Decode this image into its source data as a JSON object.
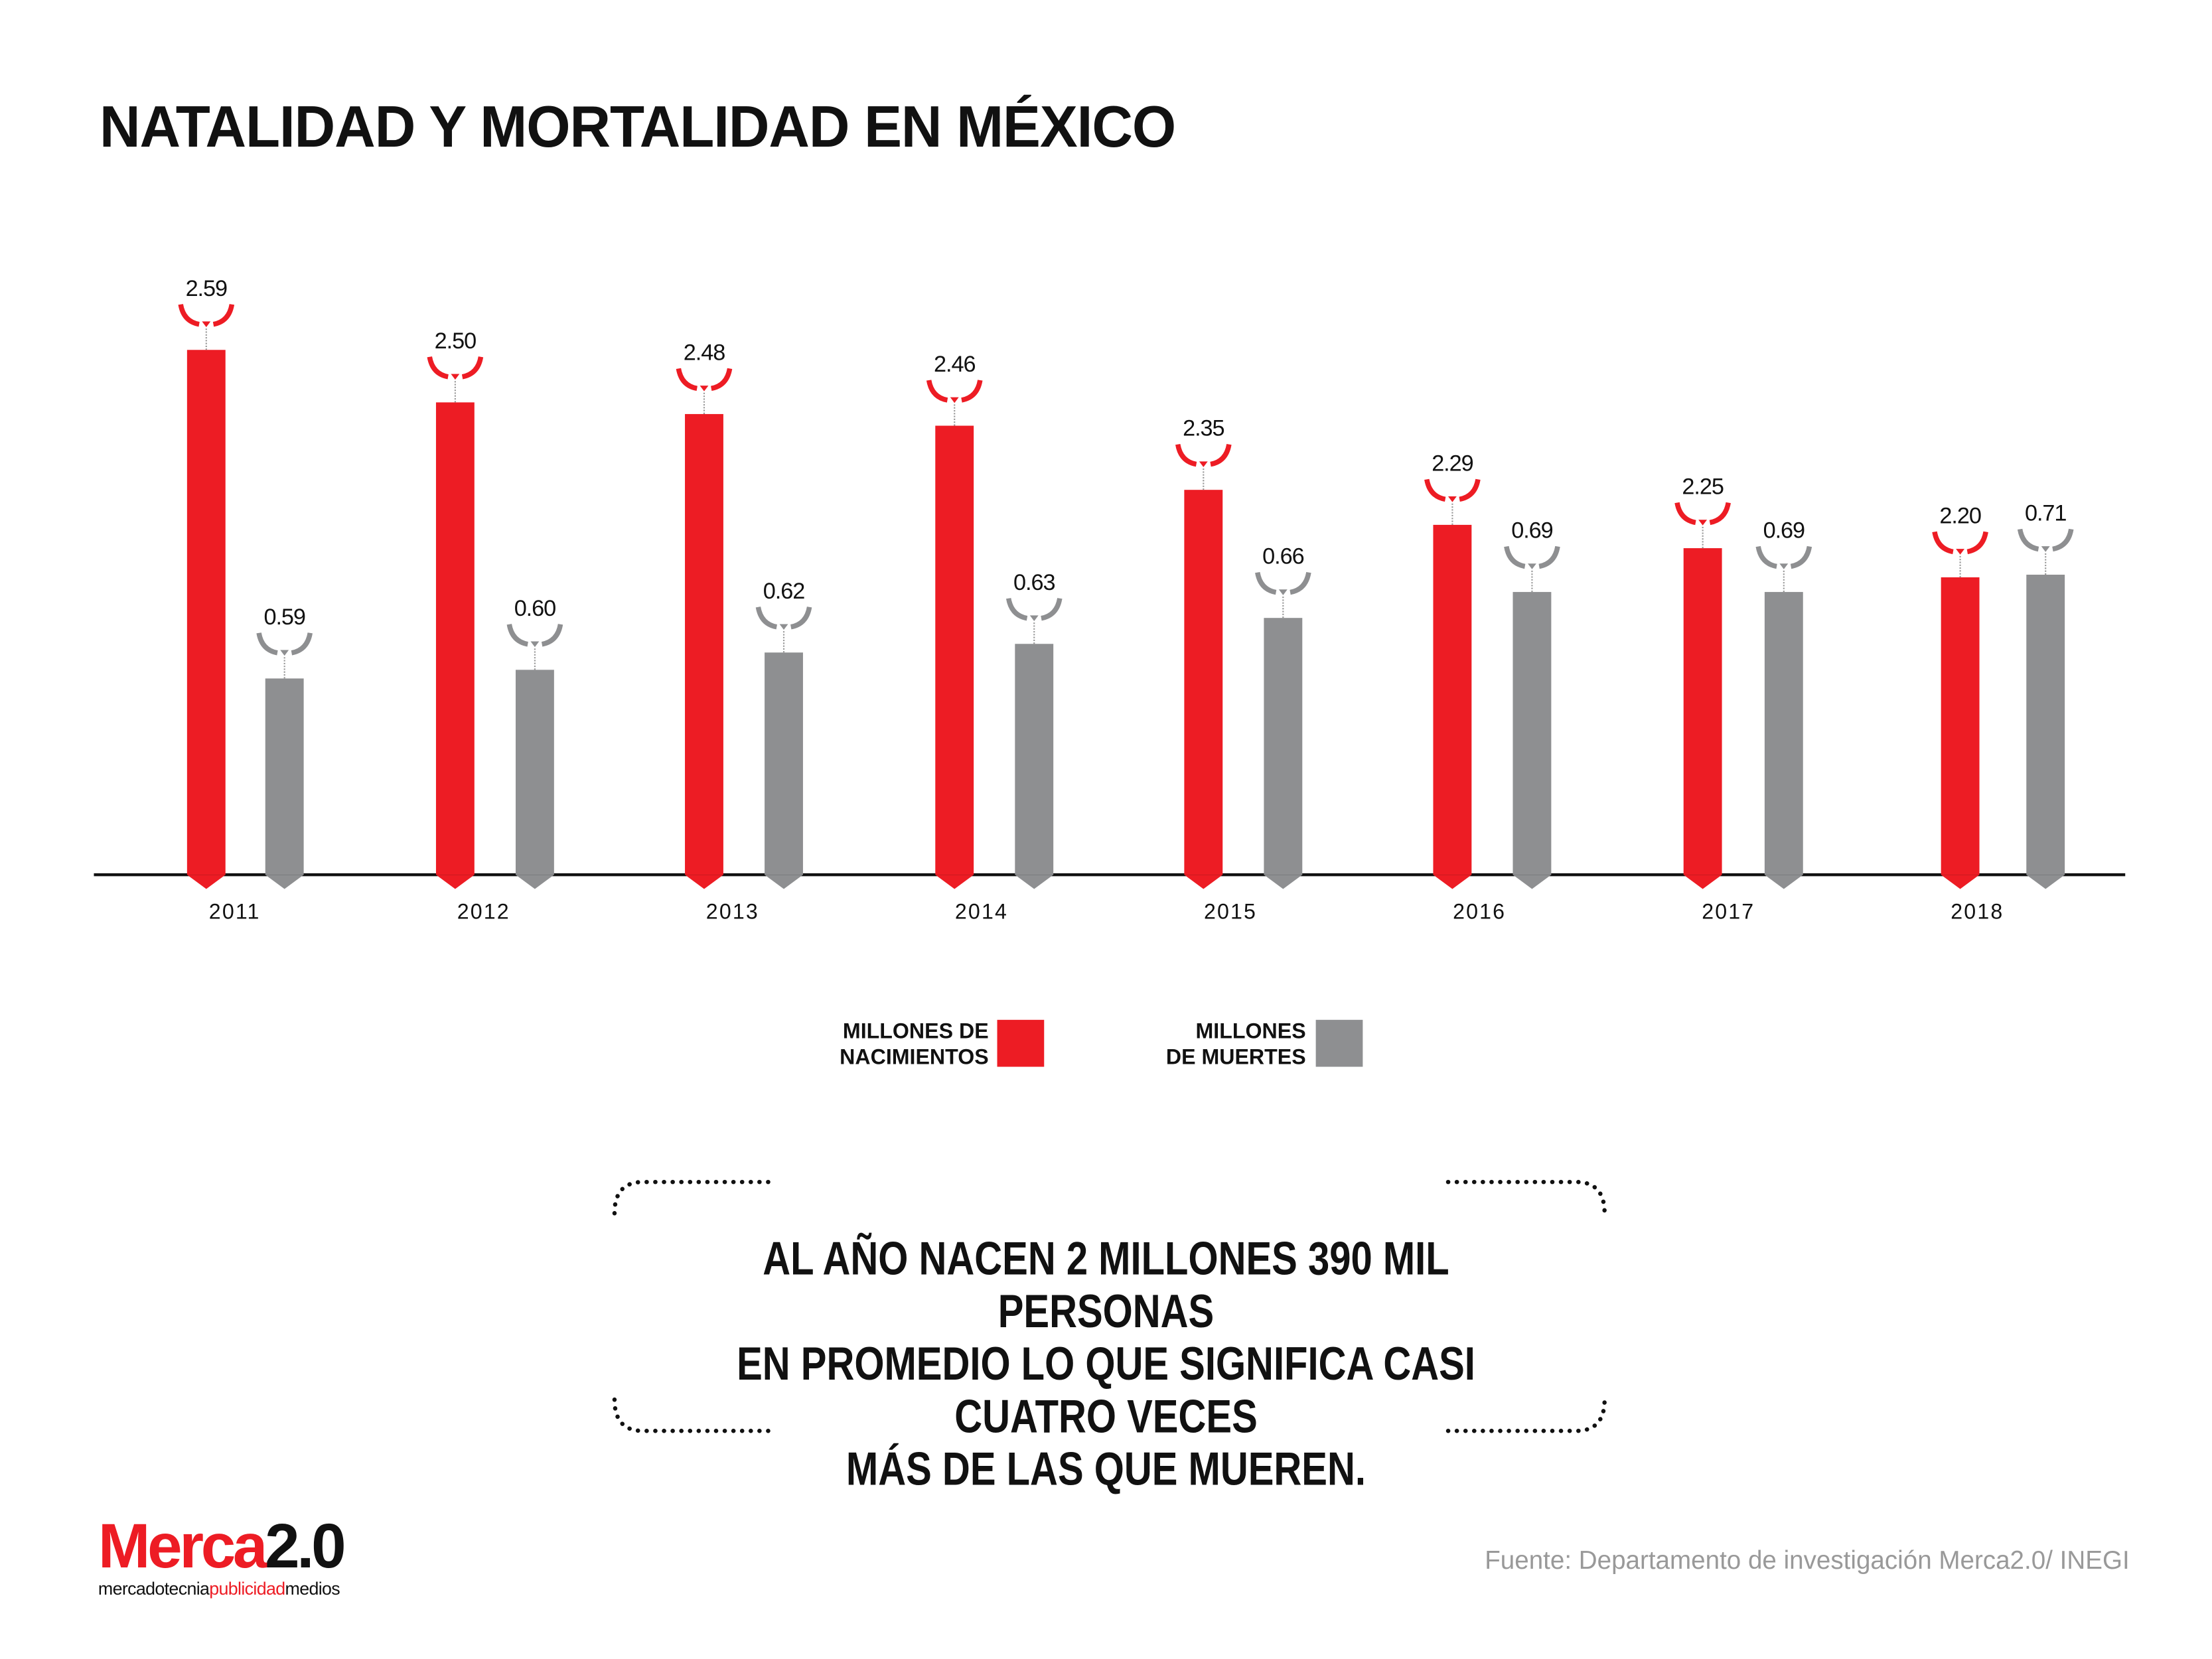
{
  "title": "NATALIDAD Y MORTALIDAD EN MÉXICO",
  "chart_data": {
    "type": "bar",
    "categories": [
      "2011",
      "2012",
      "2013",
      "2014",
      "2015",
      "2016",
      "2017",
      "2018"
    ],
    "series": [
      {
        "name": "MILLONES DE NACIMIENTOS",
        "color": "#ed1c24",
        "values": [
          2.59,
          2.5,
          2.48,
          2.46,
          2.35,
          2.29,
          2.25,
          2.2
        ],
        "labels": [
          "2.59",
          "2.50",
          "2.48",
          "2.46",
          "2.35",
          "2.29",
          "2.25",
          "2.20"
        ]
      },
      {
        "name": "MILLONES DE MUERTES",
        "color": "#8e8f91",
        "values": [
          0.59,
          0.6,
          0.62,
          0.63,
          0.66,
          0.69,
          0.69,
          0.71
        ],
        "labels": [
          "0.59",
          "0.60",
          "0.62",
          "0.63",
          "0.66",
          "0.69",
          "0.69",
          "0.71"
        ]
      }
    ],
    "grid": false,
    "legend": "bottom-center"
  },
  "legend": {
    "births_line1": "MILLONES DE",
    "births_line2": "NACIMIENTOS",
    "deaths_line1": "MILLONES",
    "deaths_line2": "DE MUERTES"
  },
  "quote": {
    "line1": "AL AÑO NACEN 2 MILLONES 390 MIL PERSONAS",
    "line2": "EN PROMEDIO LO QUE SIGNIFICA CASI CUATRO VECES",
    "line3": "MÁS DE LAS QUE MUEREN."
  },
  "logo": {
    "main_red": "Merca",
    "main_black": "2.0",
    "sub1": "mercadotecnia",
    "sub2": "publicidad",
    "sub3": "medios"
  },
  "source": "Fuente: Departamento de investigación Merca2.0/ INEGI"
}
